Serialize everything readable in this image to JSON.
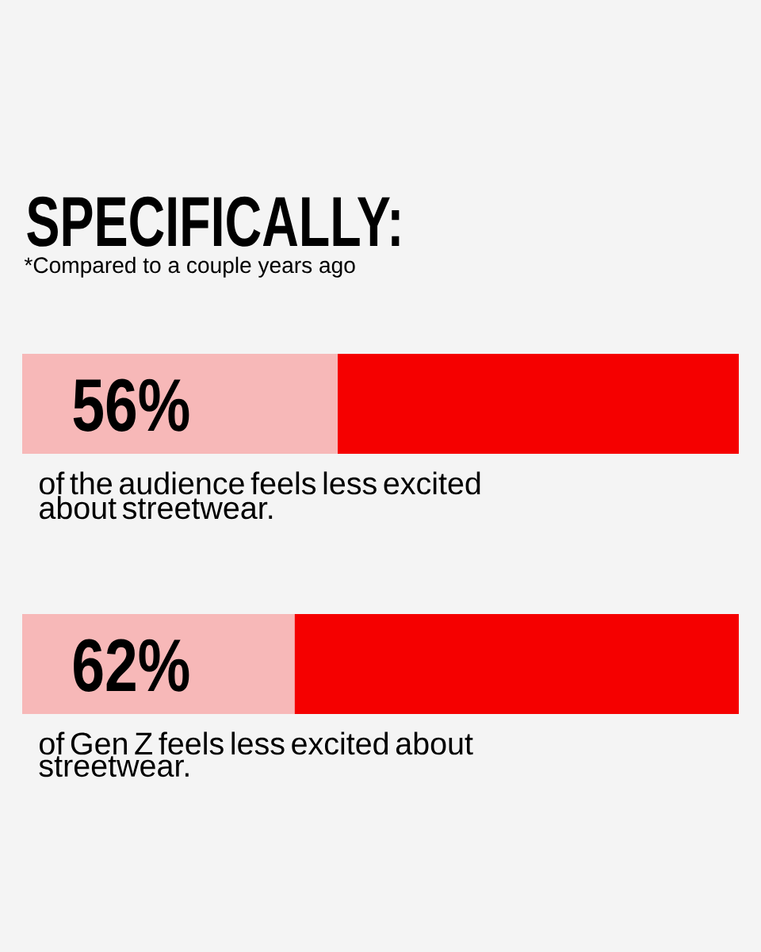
{
  "chart_data": {
    "type": "bar",
    "orientation": "horizontal",
    "stacked": true,
    "title": "SPECIFICALLY:",
    "subtitle": "*Compared to a couple years ago",
    "categories": [
      "of the audience feels less excited about streetwear.",
      "of Gen Z feels less excited about streetwear."
    ],
    "series": [
      {
        "color": "#f7b8b8",
        "values": [
          44,
          38
        ]
      },
      {
        "color": "#f50000",
        "values": [
          56,
          62
        ],
        "value_labels": [
          "56%",
          "62%"
        ]
      }
    ],
    "tick_labels": "y"
  }
}
